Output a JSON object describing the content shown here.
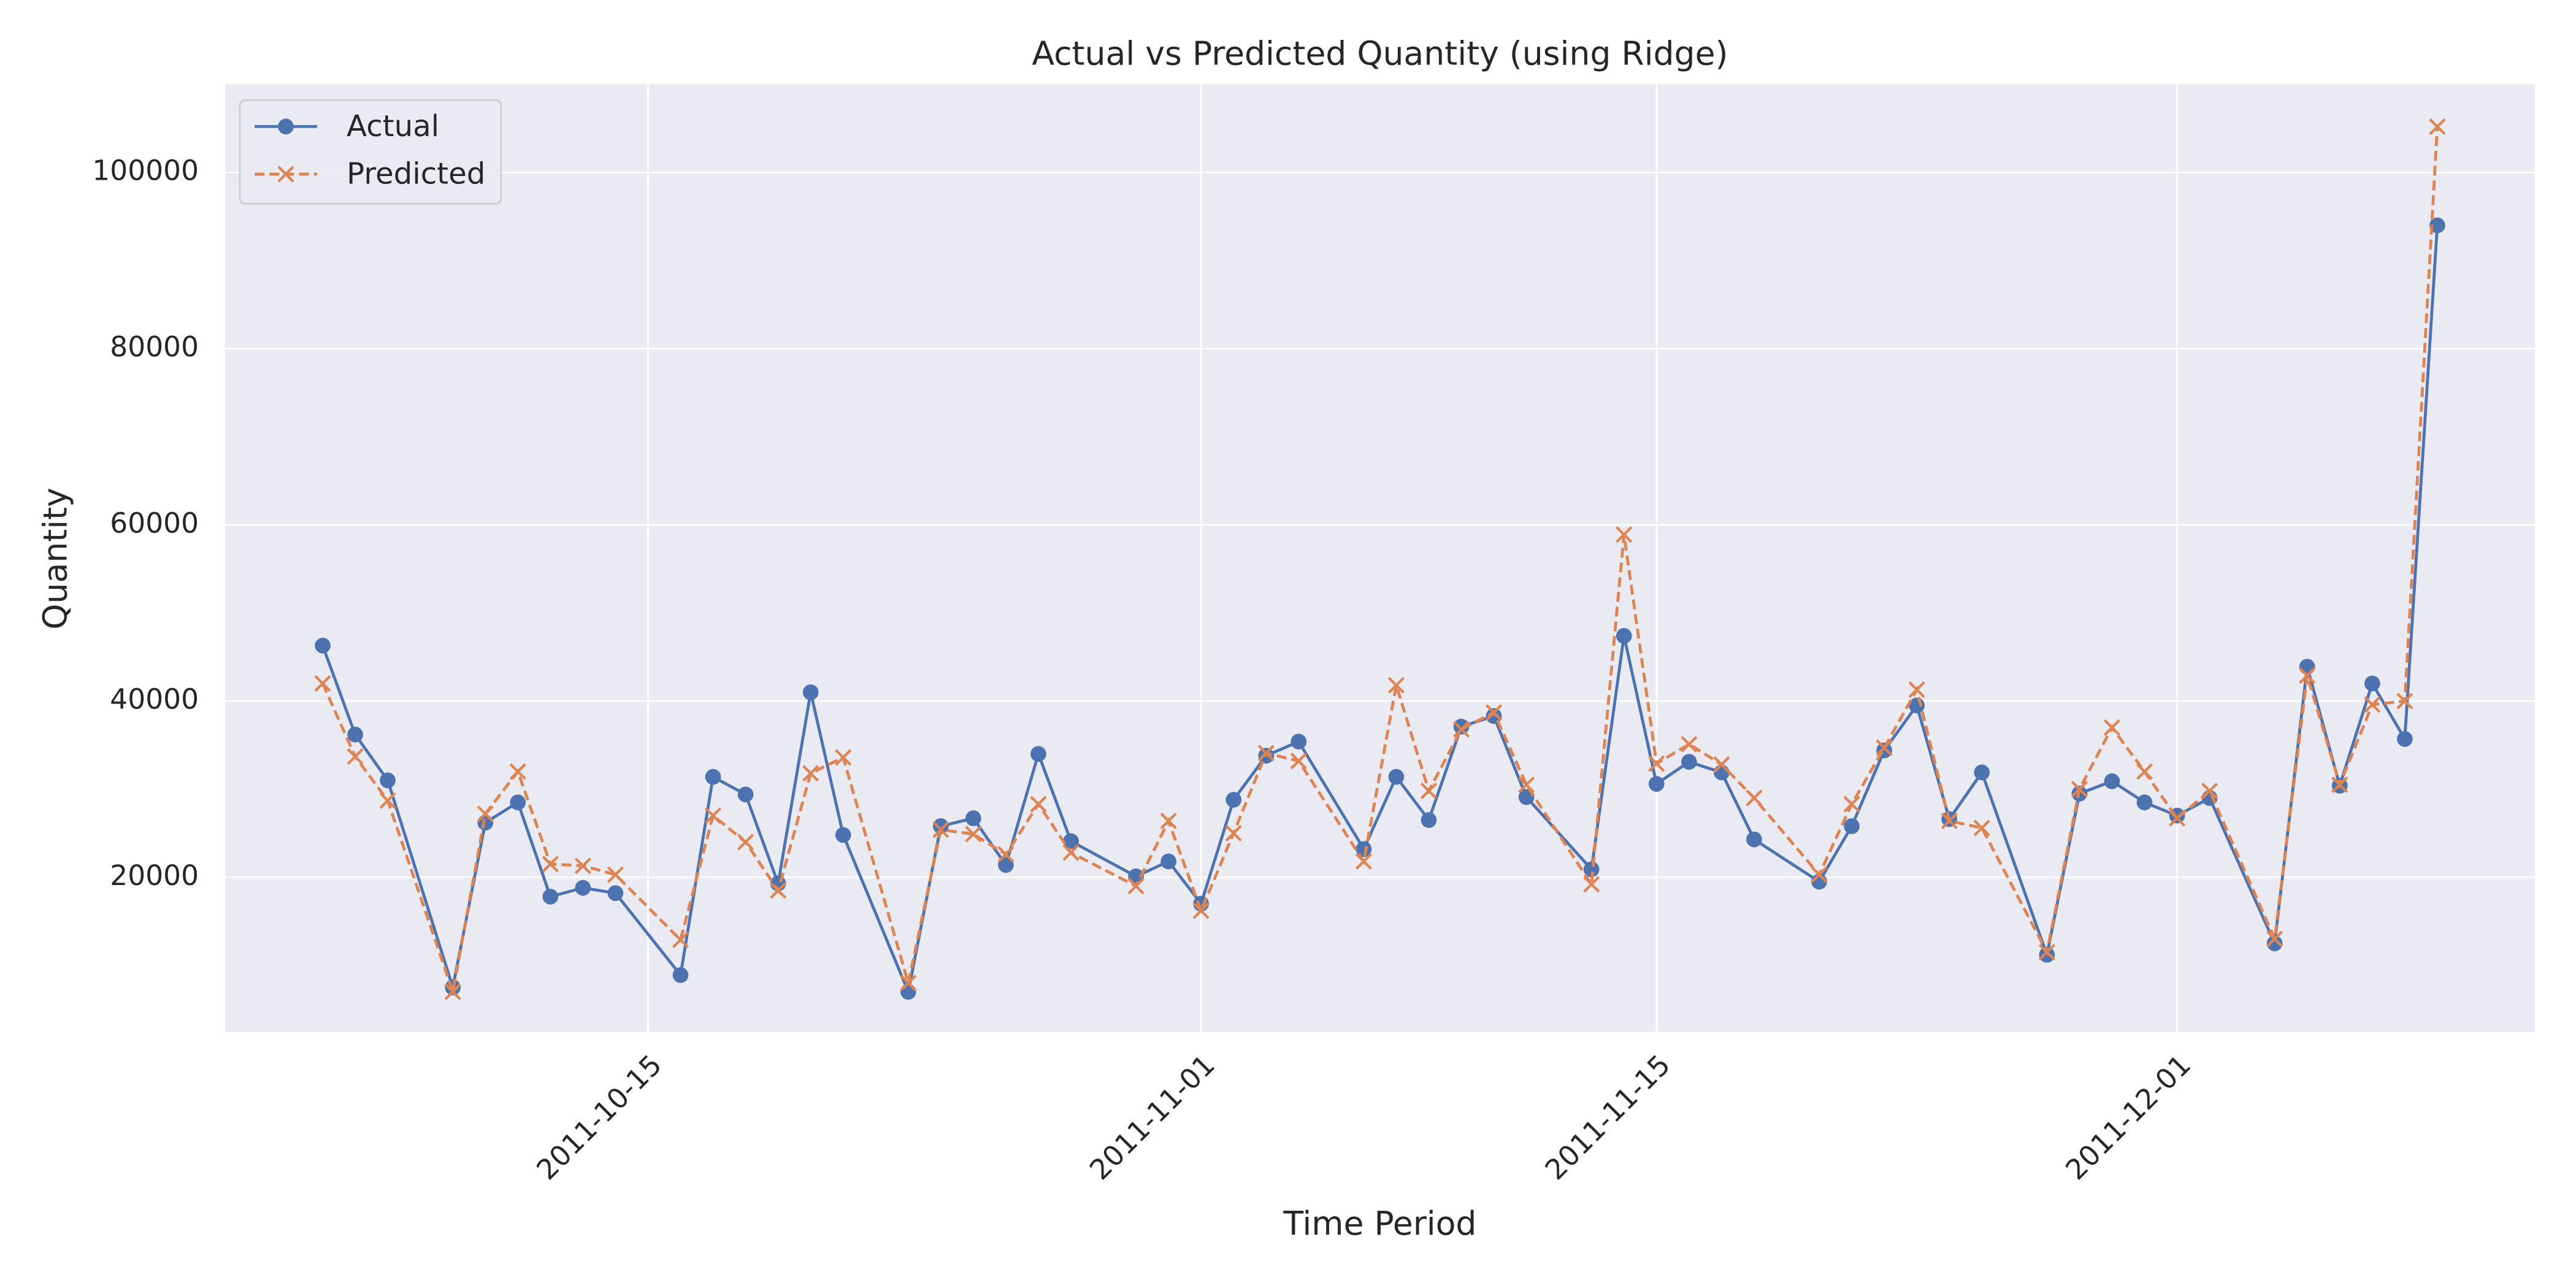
{
  "chart_data": {
    "type": "line",
    "title": "Actual vs Predicted Quantity (using Ridge)",
    "x_label": "Time Period",
    "y_label": "Quantity",
    "x": [
      "2011-10-05",
      "2011-10-06",
      "2011-10-07",
      "2011-10-09",
      "2011-10-10",
      "2011-10-11",
      "2011-10-12",
      "2011-10-13",
      "2011-10-14",
      "2011-10-16",
      "2011-10-17",
      "2011-10-18",
      "2011-10-19",
      "2011-10-20",
      "2011-10-21",
      "2011-10-23",
      "2011-10-24",
      "2011-10-25",
      "2011-10-26",
      "2011-10-27",
      "2011-10-28",
      "2011-10-30",
      "2011-10-31",
      "2011-11-01",
      "2011-11-02",
      "2011-11-03",
      "2011-11-04",
      "2011-11-06",
      "2011-11-07",
      "2011-11-08",
      "2011-11-09",
      "2011-11-10",
      "2011-11-11",
      "2011-11-13",
      "2011-11-14",
      "2011-11-15",
      "2011-11-16",
      "2011-11-17",
      "2011-11-18",
      "2011-11-20",
      "2011-11-21",
      "2011-11-22",
      "2011-11-23",
      "2011-11-24",
      "2011-11-25",
      "2011-11-27",
      "2011-11-28",
      "2011-11-29",
      "2011-11-30",
      "2011-12-01",
      "2011-12-02",
      "2011-12-04",
      "2011-12-05",
      "2011-12-06",
      "2011-12-07",
      "2011-12-08",
      "2011-12-09"
    ],
    "series": [
      {
        "name": "Actual",
        "color": "#4c72b0",
        "marker": "circle",
        "line_style": "solid",
        "values": [
          46300,
          36200,
          31000,
          7500,
          26200,
          28500,
          17800,
          18800,
          18200,
          8900,
          31400,
          29400,
          19300,
          41000,
          24800,
          7000,
          25800,
          26700,
          21400,
          34000,
          24100,
          20100,
          21800,
          17000,
          28800,
          33800,
          35400,
          23200,
          31400,
          26500,
          37100,
          38300,
          29100,
          20900,
          47400,
          30600,
          33100,
          31900,
          24300,
          19500,
          25800,
          34400,
          39500,
          26600,
          31900,
          11200,
          29500,
          30900,
          28500,
          27000,
          29000,
          12500,
          43900,
          30400,
          42000,
          35700,
          94000
        ]
      },
      {
        "name": "Predicted",
        "color": "#dd8452",
        "marker": "x",
        "line_style": "dashed",
        "values": [
          42000,
          33700,
          28700,
          7000,
          27200,
          32000,
          21500,
          21300,
          20300,
          12900,
          27000,
          24000,
          18500,
          31800,
          33600,
          8000,
          25400,
          24900,
          22600,
          28300,
          22800,
          19000,
          26400,
          16200,
          25000,
          34100,
          33200,
          21800,
          41800,
          29800,
          36800,
          38700,
          30500,
          19200,
          58900,
          32900,
          35100,
          32800,
          29000,
          20300,
          28300,
          34700,
          41300,
          26400,
          25600,
          11500,
          30000,
          37000,
          32000,
          26700,
          29800,
          13000,
          42900,
          30500,
          39600,
          40000,
          105200
        ]
      }
    ],
    "xlim": [
      "2011-10-02",
      "2011-12-12"
    ],
    "xticks": [
      "2011-10-15",
      "2011-11-01",
      "2011-11-15",
      "2011-12-01"
    ],
    "ylim": [
      2470,
      110070
    ],
    "yticks": [
      20000,
      40000,
      60000,
      80000,
      100000
    ],
    "grid": true,
    "legend": "upper left"
  }
}
